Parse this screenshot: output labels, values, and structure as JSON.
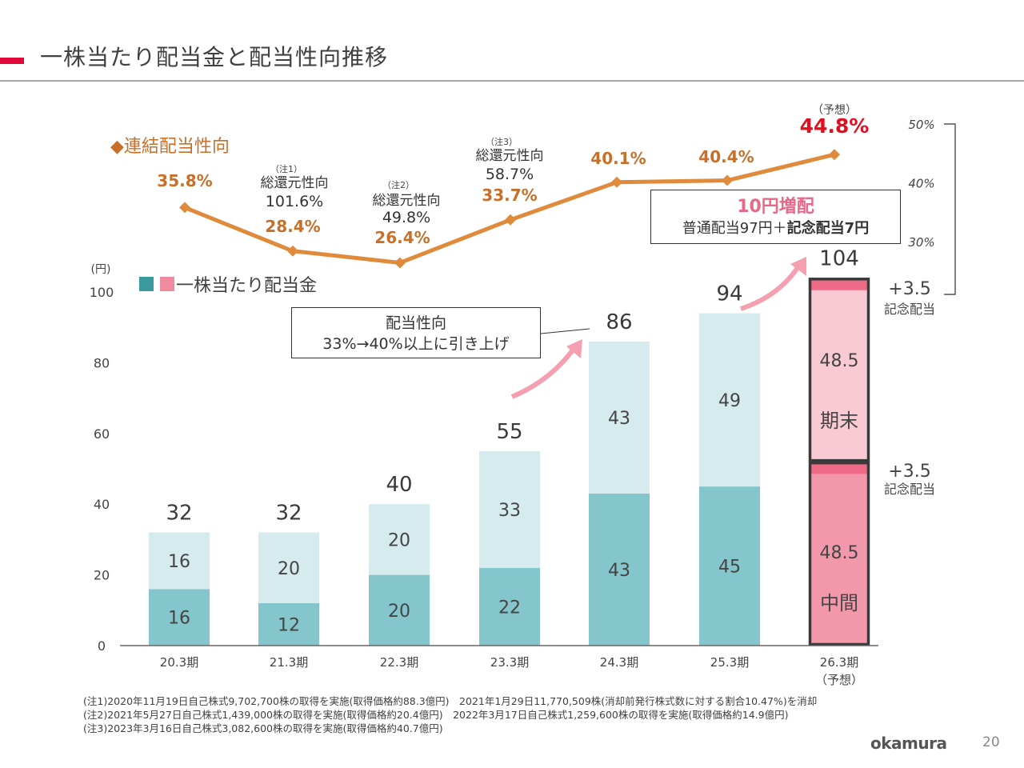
{
  "page": {
    "title": "一株当たり配当金と配当性向推移",
    "page_number": "20",
    "logo": "okamura"
  },
  "colors": {
    "accent_red": "#e0093a",
    "line_orange": "#e08a3c",
    "label_orange": "#c8702a",
    "forecast_red": "#e0101e",
    "teal_dark": "#84c6cc",
    "teal_light": "#d5ebee",
    "legend_teal": "#3a9a9e",
    "legend_pink": "#f08aa0",
    "pink_light": "#f9c9d4",
    "pink_mid": "#f398aa",
    "pink_strong": "#ef6a86",
    "arrow_pink": "#f4a0b0"
  },
  "annotations": {
    "payout_box_line1": "配当性向",
    "payout_box_line2": "33%→40%以上に引き上げ",
    "increase_box_title": "10円増配",
    "increase_box_normal": "普通配当97円＋",
    "increase_box_bold": "記念配当7円",
    "commemorative_label": "記念配当",
    "commemorative_value": "+3.5",
    "forecast_label": "（予想）",
    "year_end_label": "期末",
    "interim_label": "中間"
  },
  "notes": [
    "(注1)2020年11月19日自己株式9,702,700株の取得を実施(取得価格約88.3億円)　2021年1月29日11,770,509株(消却前発行株式数に対する割合10.47%)を消却",
    "(注2)2021年5月27日自己株式1,439,000株の取得を実施(取得価格約20.4億円)　2022年3月17日自己株式1,259,600株の取得を実施(取得価格約14.9億円)",
    "(注3)2023年3月16日自己株式3,082,600株の取得を実施(取得価格約40.7億円)"
  ],
  "chart_data": [
    {
      "type": "bar",
      "stacked": true,
      "title": "一株当たり配当金",
      "legend": "■■一株当たり配当金",
      "ylabel": "(円)",
      "ylim": [
        0,
        100
      ],
      "yticks": [
        0,
        20,
        40,
        60,
        80,
        100
      ],
      "categories": [
        "20.3期",
        "21.3期",
        "22.3期",
        "23.3期",
        "24.3期",
        "25.3期",
        "26.3期"
      ],
      "category_sublabels": [
        "",
        "",
        "",
        "",
        "",
        "",
        "（予想）"
      ],
      "series": [
        {
          "name": "中間",
          "values": [
            16,
            12,
            20,
            22,
            43,
            45,
            48.5
          ]
        },
        {
          "name": "中間記念配当",
          "values": [
            0,
            0,
            0,
            0,
            0,
            0,
            3.5
          ]
        },
        {
          "name": "期末",
          "values": [
            16,
            20,
            20,
            33,
            43,
            49,
            48.5
          ]
        },
        {
          "name": "期末記念配当",
          "values": [
            0,
            0,
            0,
            0,
            0,
            0,
            3.5
          ]
        }
      ],
      "totals": [
        32,
        32,
        40,
        55,
        86,
        94,
        104
      ],
      "grid": false
    },
    {
      "type": "line",
      "title": "◆連結配当性向",
      "ylim": [
        30,
        50
      ],
      "yticks": [
        "30%",
        "40%",
        "50%"
      ],
      "categories": [
        "20.3期",
        "21.3期",
        "22.3期",
        "23.3期",
        "24.3期",
        "25.3期",
        "26.3期"
      ],
      "values": [
        35.8,
        28.4,
        26.4,
        33.7,
        40.1,
        40.4,
        44.8
      ],
      "value_labels": [
        "35.8%",
        "28.4%",
        "26.4%",
        "33.7%",
        "40.1%",
        "40.4%",
        "44.8%"
      ],
      "total_return_notes": [
        null,
        {
          "note": "（注1）",
          "label": "総還元性向",
          "value": "101.6%"
        },
        {
          "note": "（注2）",
          "label": "総還元性向",
          "value": "49.8%"
        },
        {
          "note": "（注3）",
          "label": "総還元性向",
          "value": "58.7%"
        },
        null,
        null,
        null
      ],
      "forecast_last": true
    }
  ]
}
